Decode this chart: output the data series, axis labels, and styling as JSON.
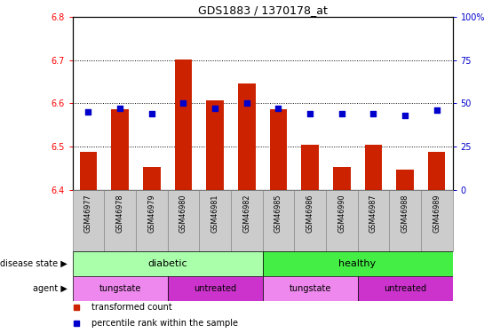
{
  "title": "GDS1883 / 1370178_at",
  "samples": [
    "GSM46977",
    "GSM46978",
    "GSM46979",
    "GSM46980",
    "GSM46981",
    "GSM46982",
    "GSM46985",
    "GSM46986",
    "GSM46990",
    "GSM46987",
    "GSM46988",
    "GSM46989"
  ],
  "bar_values": [
    6.487,
    6.587,
    6.453,
    6.702,
    6.607,
    6.645,
    6.587,
    6.505,
    6.453,
    6.505,
    6.447,
    6.487
  ],
  "percentile_values": [
    45,
    47,
    44,
    50,
    47,
    50,
    47,
    44,
    44,
    44,
    43,
    46
  ],
  "bar_bottom": 6.4,
  "ylim_left": [
    6.4,
    6.8
  ],
  "ylim_right": [
    0,
    100
  ],
  "yticks_left": [
    6.4,
    6.5,
    6.6,
    6.7,
    6.8
  ],
  "yticks_right": [
    0,
    25,
    50,
    75,
    100
  ],
  "bar_color": "#CC2200",
  "percentile_color": "#0000CC",
  "disease_state_groups": [
    {
      "label": "diabetic",
      "start": 0,
      "end": 6,
      "color": "#AAFFAA"
    },
    {
      "label": "healthy",
      "start": 6,
      "end": 12,
      "color": "#44EE44"
    }
  ],
  "agent_groups": [
    {
      "label": "tungstate",
      "start": 0,
      "end": 3,
      "color": "#EE88EE"
    },
    {
      "label": "untreated",
      "start": 3,
      "end": 6,
      "color": "#CC33CC"
    },
    {
      "label": "tungstate",
      "start": 6,
      "end": 9,
      "color": "#EE88EE"
    },
    {
      "label": "untreated",
      "start": 9,
      "end": 12,
      "color": "#CC33CC"
    }
  ],
  "sample_bg_color": "#CCCCCC",
  "sample_border_color": "#888888",
  "disease_label": "disease state",
  "agent_label": "agent",
  "legend_items": [
    {
      "label": "transformed count",
      "color": "#CC2200"
    },
    {
      "label": "percentile rank within the sample",
      "color": "#0000CC"
    }
  ]
}
